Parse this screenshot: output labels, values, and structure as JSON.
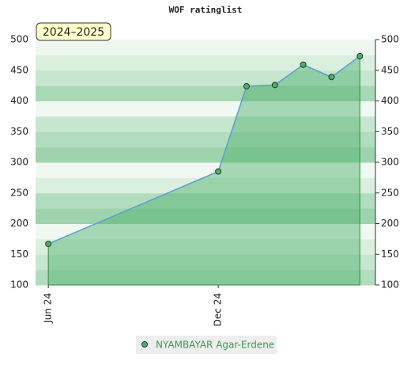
{
  "chart_data": {
    "type": "area",
    "title": "WOF ratinglist",
    "label": "2024–2025",
    "x": [
      0,
      6,
      7,
      8,
      9,
      10,
      11
    ],
    "xlim": [
      -0.45,
      11.55
    ],
    "xticks": [
      {
        "value": 0,
        "label": "Jun 24"
      },
      {
        "value": 6,
        "label": "Dec 24"
      }
    ],
    "series": [
      {
        "name": "NYAMBAYAR Agar-Erdene",
        "color": "#5b9fd6",
        "fill": "#4caf6a",
        "values": [
          167,
          285,
          424,
          426,
          459,
          439,
          473
        ]
      }
    ],
    "ylim": [
      100,
      500
    ],
    "yticks": [
      100,
      150,
      200,
      250,
      300,
      350,
      400,
      450,
      500
    ],
    "y2lim": [
      100,
      500
    ],
    "y2ticks": [
      100,
      150,
      200,
      250,
      300,
      350,
      400,
      450,
      500
    ],
    "grid": true
  }
}
